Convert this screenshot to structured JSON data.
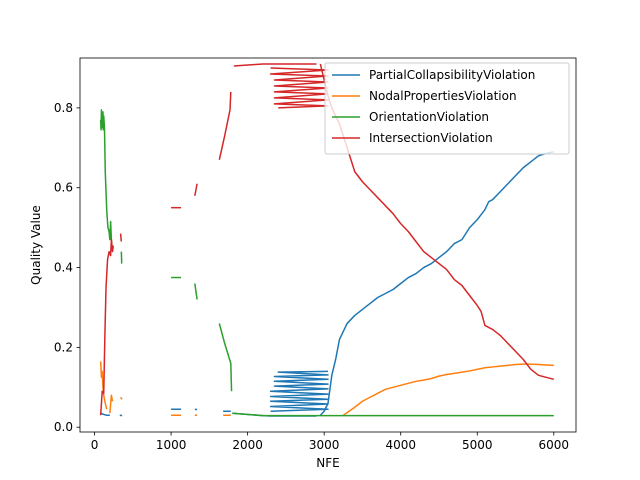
{
  "chart_data": {
    "type": "line",
    "title": "",
    "xlabel": "NFE",
    "ylabel": "Quality Value",
    "xlim": [
      -190,
      6290
    ],
    "ylim": [
      -0.012,
      0.925
    ],
    "xticks": [
      0,
      1000,
      2000,
      3000,
      4000,
      5000,
      6000
    ],
    "xtick_labels": [
      "0",
      "1000",
      "2000",
      "3000",
      "4000",
      "5000",
      "6000"
    ],
    "yticks": [
      0.0,
      0.2,
      0.4,
      0.6,
      0.8
    ],
    "ytick_labels": [
      "0.0",
      "0.2",
      "0.4",
      "0.6",
      "0.8"
    ],
    "grid": false,
    "legend_position": "top-right",
    "series": [
      {
        "name": "PartialCollapsibilityViolation",
        "color": "#1f77b4",
        "segments": [
          [
            [
              80,
              0.035
            ],
            [
              120,
              0.032
            ],
            [
              160,
              0.03
            ],
            [
              200,
              0.03
            ]
          ],
          [
            [
              330,
              0.03
            ],
            [
              360,
              0.029
            ]
          ],
          [
            [
              1000,
              0.045
            ],
            [
              1130,
              0.045
            ]
          ],
          [
            [
              1310,
              0.045
            ],
            [
              1340,
              0.044
            ]
          ],
          [
            [
              1680,
              0.04
            ],
            [
              1780,
              0.04
            ]
          ],
          [
            [
              1800,
              0.035
            ],
            [
              2200,
              0.029
            ],
            [
              2300,
              0.028
            ],
            [
              2900,
              0.028
            ]
          ],
          [
            [
              2300,
              0.04
            ],
            [
              3050,
              0.045
            ],
            [
              2300,
              0.052
            ],
            [
              3050,
              0.058
            ],
            [
              2300,
              0.065
            ],
            [
              3050,
              0.07
            ],
            [
              2300,
              0.077
            ],
            [
              3050,
              0.083
            ],
            [
              2300,
              0.09
            ],
            [
              3050,
              0.096
            ],
            [
              2350,
              0.103
            ],
            [
              3050,
              0.108
            ],
            [
              2350,
              0.115
            ],
            [
              3050,
              0.12
            ],
            [
              2350,
              0.127
            ],
            [
              3050,
              0.131
            ],
            [
              2400,
              0.138
            ],
            [
              3050,
              0.14
            ]
          ],
          [
            [
              2950,
              0.03
            ],
            [
              3000,
              0.04
            ],
            [
              3050,
              0.06
            ],
            [
              3100,
              0.13
            ],
            [
              3150,
              0.17
            ],
            [
              3200,
              0.22
            ],
            [
              3300,
              0.26
            ],
            [
              3400,
              0.28
            ],
            [
              3500,
              0.295
            ],
            [
              3600,
              0.31
            ],
            [
              3700,
              0.325
            ],
            [
              3800,
              0.335
            ],
            [
              3900,
              0.345
            ],
            [
              4000,
              0.36
            ],
            [
              4100,
              0.375
            ],
            [
              4200,
              0.385
            ],
            [
              4300,
              0.4
            ],
            [
              4400,
              0.41
            ],
            [
              4500,
              0.425
            ],
            [
              4600,
              0.44
            ],
            [
              4700,
              0.46
            ],
            [
              4800,
              0.47
            ],
            [
              4900,
              0.5
            ],
            [
              5000,
              0.52
            ],
            [
              5100,
              0.545
            ],
            [
              5150,
              0.565
            ],
            [
              5200,
              0.57
            ],
            [
              5300,
              0.59
            ],
            [
              5400,
              0.61
            ],
            [
              5500,
              0.63
            ],
            [
              5600,
              0.65
            ],
            [
              5700,
              0.665
            ],
            [
              5800,
              0.68
            ],
            [
              5900,
              0.686
            ],
            [
              6000,
              0.69
            ]
          ]
        ]
      },
      {
        "name": "NodalPropertiesViolation",
        "color": "#ff7f0e",
        "segments": [
          [
            [
              80,
              0.165
            ],
            [
              90,
              0.125
            ],
            [
              100,
              0.14
            ],
            [
              110,
              0.1
            ],
            [
              120,
              0.08
            ],
            [
              140,
              0.06
            ],
            [
              160,
              0.045
            ]
          ],
          [
            [
              200,
              0.035
            ],
            [
              220,
              0.08
            ],
            [
              235,
              0.065
            ]
          ],
          [
            [
              340,
              0.075
            ],
            [
              360,
              0.07
            ]
          ],
          [
            [
              1000,
              0.03
            ],
            [
              1130,
              0.03
            ]
          ],
          [
            [
              1310,
              0.03
            ],
            [
              1340,
              0.03
            ]
          ],
          [
            [
              1680,
              0.03
            ],
            [
              1780,
              0.03
            ]
          ],
          [
            [
              3250,
              0.03
            ],
            [
              3400,
              0.05
            ],
            [
              3500,
              0.065
            ],
            [
              3600,
              0.075
            ],
            [
              3700,
              0.085
            ],
            [
              3800,
              0.095
            ],
            [
              3900,
              0.1
            ],
            [
              4000,
              0.105
            ],
            [
              4100,
              0.11
            ],
            [
              4200,
              0.115
            ],
            [
              4300,
              0.118
            ],
            [
              4400,
              0.122
            ],
            [
              4500,
              0.128
            ],
            [
              4600,
              0.132
            ],
            [
              4700,
              0.135
            ],
            [
              4800,
              0.138
            ],
            [
              4900,
              0.141
            ],
            [
              5000,
              0.145
            ],
            [
              5100,
              0.149
            ],
            [
              5200,
              0.151
            ],
            [
              5300,
              0.153
            ],
            [
              5400,
              0.155
            ],
            [
              5500,
              0.157
            ],
            [
              5600,
              0.158
            ],
            [
              5700,
              0.158
            ],
            [
              5800,
              0.157
            ],
            [
              5900,
              0.156
            ],
            [
              6000,
              0.155
            ]
          ]
        ]
      },
      {
        "name": "OrientationViolation",
        "color": "#2ca02c",
        "segments": [
          [
            [
              80,
              0.77
            ],
            [
              85,
              0.745
            ],
            [
              90,
              0.795
            ],
            [
              95,
              0.76
            ],
            [
              100,
              0.785
            ],
            [
              105,
              0.75
            ],
            [
              110,
              0.79
            ],
            [
              115,
              0.745
            ],
            [
              120,
              0.78
            ],
            [
              130,
              0.75
            ],
            [
              140,
              0.64
            ],
            [
              150,
              0.59
            ],
            [
              160,
              0.54
            ],
            [
              175,
              0.5
            ],
            [
              190,
              0.49
            ],
            [
              200,
              0.47
            ],
            [
              210,
              0.515
            ],
            [
              220,
              0.47
            ],
            [
              230,
              0.45
            ]
          ],
          [
            [
              350,
              0.44
            ],
            [
              355,
              0.41
            ]
          ],
          [
            [
              1000,
              0.375
            ],
            [
              1130,
              0.375
            ]
          ],
          [
            [
              1310,
              0.36
            ],
            [
              1340,
              0.32
            ]
          ],
          [
            [
              1630,
              0.26
            ],
            [
              1700,
              0.21
            ],
            [
              1780,
              0.16
            ],
            [
              1790,
              0.09
            ]
          ],
          [
            [
              1800,
              0.035
            ],
            [
              2200,
              0.029
            ],
            [
              6000,
              0.029
            ]
          ]
        ]
      },
      {
        "name": "IntersectionViolation",
        "color": "#d62728",
        "segments": [
          [
            [
              80,
              0.03
            ],
            [
              100,
              0.09
            ],
            [
              120,
              0.085
            ],
            [
              135,
              0.23
            ],
            [
              150,
              0.35
            ],
            [
              170,
              0.42
            ],
            [
              190,
              0.44
            ],
            [
              210,
              0.43
            ],
            [
              220,
              0.47
            ],
            [
              235,
              0.44
            ],
            [
              245,
              0.455
            ]
          ],
          [
            [
              340,
              0.485
            ],
            [
              350,
              0.465
            ]
          ],
          [
            [
              1000,
              0.55
            ],
            [
              1130,
              0.55
            ]
          ],
          [
            [
              1310,
              0.58
            ],
            [
              1340,
              0.61
            ]
          ],
          [
            [
              1630,
              0.67
            ],
            [
              1700,
              0.73
            ],
            [
              1770,
              0.795
            ],
            [
              1780,
              0.84
            ]
          ],
          [
            [
              1820,
              0.905
            ],
            [
              2200,
              0.91
            ],
            [
              2900,
              0.91
            ]
          ],
          [
            [
              2300,
              0.9
            ],
            [
              3050,
              0.895
            ],
            [
              2300,
              0.885
            ],
            [
              3050,
              0.88
            ],
            [
              2350,
              0.87
            ],
            [
              3050,
              0.865
            ],
            [
              2350,
              0.855
            ],
            [
              3050,
              0.85
            ],
            [
              2350,
              0.84
            ],
            [
              3050,
              0.835
            ],
            [
              2350,
              0.825
            ],
            [
              3050,
              0.82
            ],
            [
              2350,
              0.81
            ],
            [
              3050,
              0.805
            ],
            [
              2400,
              0.8
            ]
          ],
          [
            [
              2950,
              0.91
            ],
            [
              3000,
              0.87
            ],
            [
              3050,
              0.83
            ],
            [
              3100,
              0.8
            ],
            [
              3200,
              0.76
            ],
            [
              3300,
              0.7
            ],
            [
              3400,
              0.64
            ],
            [
              3500,
              0.615
            ],
            [
              3600,
              0.595
            ],
            [
              3700,
              0.575
            ],
            [
              3800,
              0.555
            ],
            [
              3900,
              0.535
            ],
            [
              4000,
              0.51
            ],
            [
              4100,
              0.49
            ],
            [
              4200,
              0.465
            ],
            [
              4300,
              0.44
            ],
            [
              4400,
              0.425
            ],
            [
              4500,
              0.41
            ],
            [
              4600,
              0.395
            ],
            [
              4700,
              0.37
            ],
            [
              4800,
              0.355
            ],
            [
              4900,
              0.33
            ],
            [
              5000,
              0.305
            ],
            [
              5050,
              0.29
            ],
            [
              5100,
              0.255
            ],
            [
              5200,
              0.245
            ],
            [
              5300,
              0.23
            ],
            [
              5400,
              0.21
            ],
            [
              5500,
              0.19
            ],
            [
              5600,
              0.17
            ],
            [
              5700,
              0.145
            ],
            [
              5800,
              0.13
            ],
            [
              5900,
              0.125
            ],
            [
              6000,
              0.12
            ]
          ]
        ]
      }
    ]
  }
}
